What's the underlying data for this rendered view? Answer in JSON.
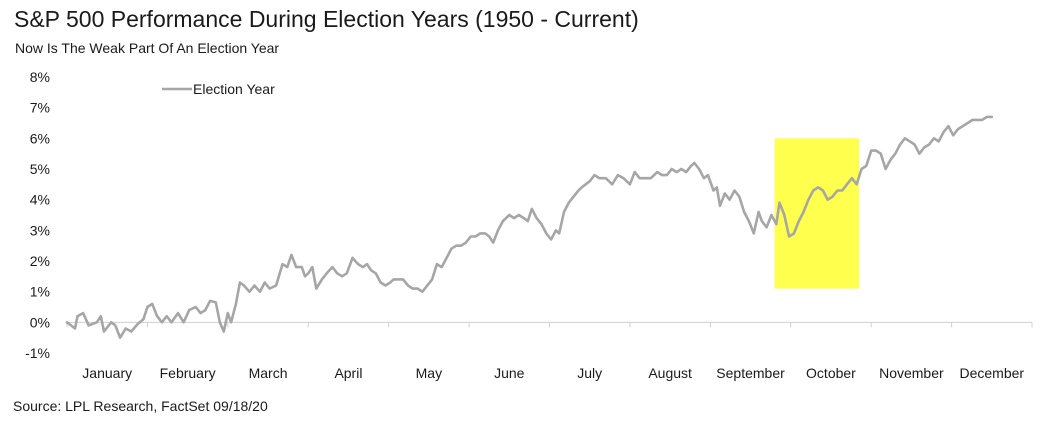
{
  "header": {
    "title": "S&P 500 Performance During Election Years (1950 - Current)",
    "subtitle": "Now Is The Weak Part Of An Election Year"
  },
  "footer": {
    "source": "Source: LPL Research, FactSet 09/18/20"
  },
  "colors": {
    "series": "#a6a6a6",
    "highlight": "#ffff4d",
    "axis": "#d0d0d0"
  },
  "chart_data": {
    "type": "line",
    "title": "S&P 500 Performance During Election Years (1950 - Current)",
    "subtitle": "Now Is The Weak Part Of An Election Year",
    "xlabel": "",
    "ylabel": "",
    "ylim": [
      -1,
      8
    ],
    "y_ticks": [
      "-1%",
      "0%",
      "1%",
      "2%",
      "3%",
      "4%",
      "5%",
      "6%",
      "7%",
      "8%"
    ],
    "categories": [
      "January",
      "February",
      "March",
      "April",
      "May",
      "June",
      "July",
      "August",
      "September",
      "October",
      "November",
      "December"
    ],
    "xlim_months": [
      0,
      12
    ],
    "legend": {
      "position": "top-left",
      "entries": [
        "Election Year"
      ]
    },
    "grid": false,
    "highlight": {
      "x_start_month": 8.8,
      "x_end_month": 9.85,
      "y_low": 1.1,
      "y_high": 6.0
    },
    "series": [
      {
        "name": "Election Year",
        "points": [
          [
            0.0,
            0.0
          ],
          [
            0.1,
            -0.2
          ],
          [
            0.13,
            0.2
          ],
          [
            0.2,
            0.3
          ],
          [
            0.27,
            -0.1
          ],
          [
            0.37,
            0.0
          ],
          [
            0.42,
            0.2
          ],
          [
            0.46,
            -0.3
          ],
          [
            0.55,
            0.0
          ],
          [
            0.6,
            -0.1
          ],
          [
            0.66,
            -0.5
          ],
          [
            0.73,
            -0.2
          ],
          [
            0.8,
            -0.3
          ],
          [
            0.88,
            -0.05
          ],
          [
            0.95,
            0.1
          ],
          [
            1.0,
            0.5
          ],
          [
            1.06,
            0.6
          ],
          [
            1.12,
            0.2
          ],
          [
            1.18,
            0.0
          ],
          [
            1.24,
            0.2
          ],
          [
            1.3,
            0.0
          ],
          [
            1.38,
            0.3
          ],
          [
            1.45,
            0.0
          ],
          [
            1.52,
            0.4
          ],
          [
            1.6,
            0.5
          ],
          [
            1.66,
            0.3
          ],
          [
            1.72,
            0.4
          ],
          [
            1.78,
            0.7
          ],
          [
            1.85,
            0.65
          ],
          [
            1.9,
            0.0
          ],
          [
            1.95,
            -0.3
          ],
          [
            2.0,
            0.3
          ],
          [
            2.04,
            0.0
          ],
          [
            2.1,
            0.6
          ],
          [
            2.15,
            1.3
          ],
          [
            2.2,
            1.2
          ],
          [
            2.27,
            1.0
          ],
          [
            2.33,
            1.2
          ],
          [
            2.4,
            1.0
          ],
          [
            2.46,
            1.3
          ],
          [
            2.52,
            1.1
          ],
          [
            2.6,
            1.2
          ],
          [
            2.68,
            1.9
          ],
          [
            2.74,
            1.8
          ],
          [
            2.79,
            2.2
          ],
          [
            2.85,
            1.8
          ],
          [
            2.92,
            1.8
          ],
          [
            2.96,
            1.5
          ],
          [
            3.0,
            1.6
          ],
          [
            3.05,
            1.8
          ],
          [
            3.1,
            1.1
          ],
          [
            3.17,
            1.4
          ],
          [
            3.23,
            1.6
          ],
          [
            3.3,
            1.8
          ],
          [
            3.36,
            1.6
          ],
          [
            3.42,
            1.5
          ],
          [
            3.48,
            1.6
          ],
          [
            3.55,
            2.1
          ],
          [
            3.62,
            1.9
          ],
          [
            3.68,
            1.8
          ],
          [
            3.73,
            1.9
          ],
          [
            3.78,
            1.7
          ],
          [
            3.84,
            1.6
          ],
          [
            3.9,
            1.3
          ],
          [
            3.96,
            1.2
          ],
          [
            4.02,
            1.3
          ],
          [
            4.06,
            1.4
          ],
          [
            4.12,
            1.4
          ],
          [
            4.18,
            1.4
          ],
          [
            4.24,
            1.2
          ],
          [
            4.3,
            1.1
          ],
          [
            4.36,
            1.1
          ],
          [
            4.42,
            1.0
          ],
          [
            4.48,
            1.2
          ],
          [
            4.54,
            1.4
          ],
          [
            4.6,
            1.9
          ],
          [
            4.66,
            1.8
          ],
          [
            4.72,
            2.1
          ],
          [
            4.78,
            2.4
          ],
          [
            4.84,
            2.5
          ],
          [
            4.9,
            2.5
          ],
          [
            4.96,
            2.6
          ],
          [
            5.02,
            2.8
          ],
          [
            5.08,
            2.8
          ],
          [
            5.14,
            2.9
          ],
          [
            5.2,
            2.9
          ],
          [
            5.25,
            2.8
          ],
          [
            5.3,
            2.6
          ],
          [
            5.36,
            3.0
          ],
          [
            5.42,
            3.3
          ],
          [
            5.5,
            3.5
          ],
          [
            5.56,
            3.4
          ],
          [
            5.62,
            3.5
          ],
          [
            5.68,
            3.4
          ],
          [
            5.73,
            3.3
          ],
          [
            5.78,
            3.7
          ],
          [
            5.84,
            3.4
          ],
          [
            5.9,
            3.2
          ],
          [
            5.96,
            2.9
          ],
          [
            6.02,
            2.7
          ],
          [
            6.08,
            3.0
          ],
          [
            6.12,
            2.9
          ],
          [
            6.18,
            3.6
          ],
          [
            6.24,
            3.9
          ],
          [
            6.3,
            4.1
          ],
          [
            6.36,
            4.3
          ],
          [
            6.4,
            4.4
          ],
          [
            6.45,
            4.5
          ],
          [
            6.5,
            4.6
          ],
          [
            6.56,
            4.8
          ],
          [
            6.62,
            4.7
          ],
          [
            6.7,
            4.7
          ],
          [
            6.78,
            4.5
          ],
          [
            6.85,
            4.8
          ],
          [
            6.92,
            4.7
          ],
          [
            7.0,
            4.5
          ],
          [
            7.06,
            4.9
          ],
          [
            7.12,
            4.7
          ],
          [
            7.18,
            4.7
          ],
          [
            7.26,
            4.7
          ],
          [
            7.34,
            4.9
          ],
          [
            7.4,
            4.8
          ],
          [
            7.46,
            4.8
          ],
          [
            7.52,
            5.0
          ],
          [
            7.58,
            4.9
          ],
          [
            7.64,
            5.0
          ],
          [
            7.7,
            4.9
          ],
          [
            7.76,
            5.1
          ],
          [
            7.8,
            5.2
          ],
          [
            7.86,
            5.0
          ],
          [
            7.92,
            4.7
          ],
          [
            7.97,
            4.8
          ],
          [
            8.04,
            4.3
          ],
          [
            8.08,
            4.4
          ],
          [
            8.12,
            3.8
          ],
          [
            8.18,
            4.2
          ],
          [
            8.24,
            4.0
          ],
          [
            8.3,
            4.3
          ],
          [
            8.36,
            4.1
          ],
          [
            8.42,
            3.6
          ],
          [
            8.48,
            3.3
          ],
          [
            8.54,
            2.9
          ],
          [
            8.6,
            3.6
          ],
          [
            8.64,
            3.3
          ],
          [
            8.7,
            3.1
          ],
          [
            8.76,
            3.5
          ],
          [
            8.82,
            3.2
          ],
          [
            8.86,
            3.9
          ],
          [
            8.92,
            3.5
          ],
          [
            8.98,
            2.8
          ],
          [
            9.04,
            2.9
          ],
          [
            9.1,
            3.3
          ],
          [
            9.16,
            3.6
          ],
          [
            9.22,
            4.0
          ],
          [
            9.28,
            4.3
          ],
          [
            9.34,
            4.4
          ],
          [
            9.4,
            4.3
          ],
          [
            9.46,
            4.0
          ],
          [
            9.52,
            4.1
          ],
          [
            9.58,
            4.3
          ],
          [
            9.64,
            4.3
          ],
          [
            9.7,
            4.5
          ],
          [
            9.76,
            4.7
          ],
          [
            9.82,
            4.5
          ],
          [
            9.88,
            5.0
          ],
          [
            9.94,
            5.1
          ],
          [
            10.0,
            5.6
          ],
          [
            10.06,
            5.6
          ],
          [
            10.12,
            5.5
          ],
          [
            10.18,
            5.0
          ],
          [
            10.24,
            5.3
          ],
          [
            10.3,
            5.5
          ],
          [
            10.36,
            5.8
          ],
          [
            10.42,
            6.0
          ],
          [
            10.48,
            5.9
          ],
          [
            10.54,
            5.8
          ],
          [
            10.6,
            5.5
          ],
          [
            10.66,
            5.7
          ],
          [
            10.72,
            5.8
          ],
          [
            10.78,
            6.0
          ],
          [
            10.84,
            5.9
          ],
          [
            10.9,
            6.2
          ],
          [
            10.96,
            6.4
          ],
          [
            11.02,
            6.1
          ],
          [
            11.08,
            6.3
          ],
          [
            11.14,
            6.4
          ],
          [
            11.2,
            6.5
          ],
          [
            11.26,
            6.6
          ],
          [
            11.32,
            6.6
          ],
          [
            11.38,
            6.6
          ],
          [
            11.44,
            6.7
          ],
          [
            11.5,
            6.7
          ]
        ]
      }
    ]
  }
}
